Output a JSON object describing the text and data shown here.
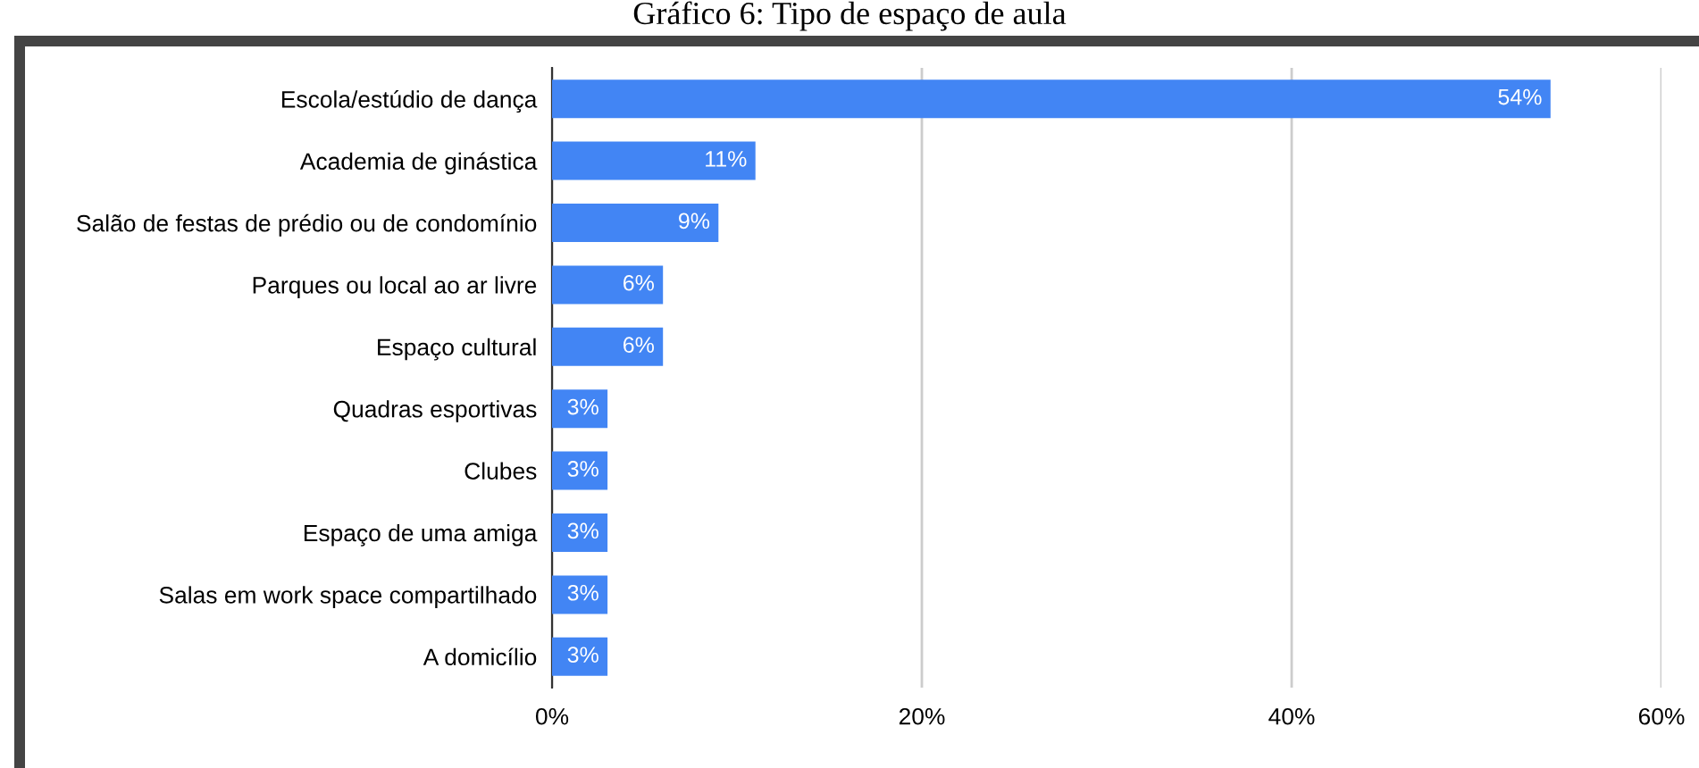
{
  "chart_data": {
    "type": "bar",
    "orientation": "horizontal",
    "title": "Gráfico 6: Tipo de espaço de aula",
    "categories": [
      "Escola/estúdio de dança",
      "Academia de ginástica",
      "Salão de festas de prédio ou de condomínio",
      "Parques ou local ao ar livre",
      "Espaço cultural",
      "Quadras esportivas",
      "Clubes",
      "Espaço de uma amiga",
      "Salas em work space compartilhado",
      "A domicílio"
    ],
    "values": [
      54,
      11,
      9,
      6,
      6,
      3,
      3,
      3,
      3,
      3
    ],
    "value_labels": [
      "54%",
      "11%",
      "9%",
      "6%",
      "6%",
      "3%",
      "3%",
      "3%",
      "3%",
      "3%"
    ],
    "color": "#4285f4",
    "xlim": [
      0,
      60
    ],
    "xticks": [
      {
        "value": 0,
        "label": "0%"
      },
      {
        "value": 20,
        "label": "20%"
      },
      {
        "value": 40,
        "label": "40%"
      },
      {
        "value": 60,
        "label": "60%"
      }
    ],
    "grid": "x"
  }
}
